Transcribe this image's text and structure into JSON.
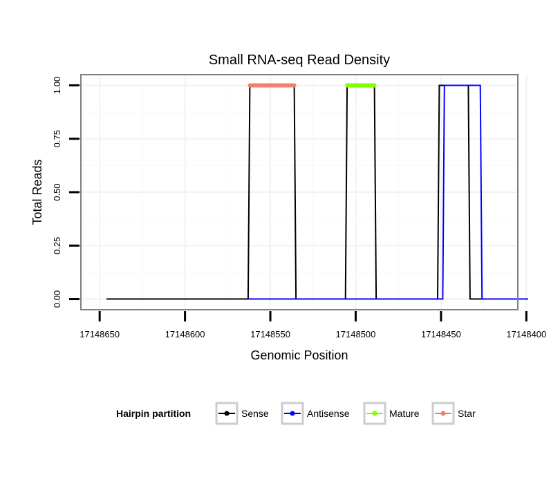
{
  "chart_data": {
    "type": "line",
    "title": "Small RNA-seq Read Density",
    "xlabel": "Genomic Position",
    "ylabel": "Total Reads",
    "x_reversed": true,
    "xlim": [
      17148405,
      17148661
    ],
    "ylim": [
      -0.05,
      1.05
    ],
    "x_ticks": [
      17148650,
      17148600,
      17148550,
      17148500,
      17148450,
      17148400
    ],
    "x_tick_labels": [
      "17148650",
      "17148600",
      "17148550",
      "17148500",
      "17148450",
      "17148400"
    ],
    "y_ticks": [
      0.0,
      0.25,
      0.5,
      0.75,
      1.0
    ],
    "y_tick_labels": [
      "0.00",
      "0.25",
      "0.50",
      "0.75",
      "1.00"
    ],
    "grid": true,
    "legend": {
      "title": "Hairpin partition",
      "position": "bottom",
      "items": [
        {
          "name": "Sense",
          "color": "#000000"
        },
        {
          "name": "Antisense",
          "color": "#0000ff"
        },
        {
          "name": "Mature",
          "color": "#7fff00"
        },
        {
          "name": "Star",
          "color": "#f08070"
        }
      ]
    },
    "series": [
      {
        "name": "Sense",
        "color": "#000000",
        "points": [
          [
            17148646,
            0
          ],
          [
            17148563,
            0
          ],
          [
            17148562,
            1
          ],
          [
            17148536,
            1
          ],
          [
            17148535,
            0
          ],
          [
            17148506,
            0
          ],
          [
            17148505,
            1
          ],
          [
            17148489,
            1
          ],
          [
            17148488,
            0
          ],
          [
            17148452,
            0
          ],
          [
            17148451,
            1
          ],
          [
            17148434,
            1
          ],
          [
            17148433,
            0
          ],
          [
            17148399,
            0
          ]
        ]
      },
      {
        "name": "Antisense",
        "color": "#0000ff",
        "points": [
          [
            17148563,
            0
          ],
          [
            17148449,
            0
          ],
          [
            17148448,
            1
          ],
          [
            17148427,
            1
          ],
          [
            17148426,
            0
          ],
          [
            17148399,
            0
          ]
        ]
      },
      {
        "name": "Mature",
        "color": "#7fff00",
        "points": [
          [
            17148505,
            1
          ],
          [
            17148489,
            1
          ]
        ]
      },
      {
        "name": "Star",
        "color": "#f08070",
        "points": [
          [
            17148562,
            1
          ],
          [
            17148536,
            1
          ]
        ]
      }
    ]
  }
}
